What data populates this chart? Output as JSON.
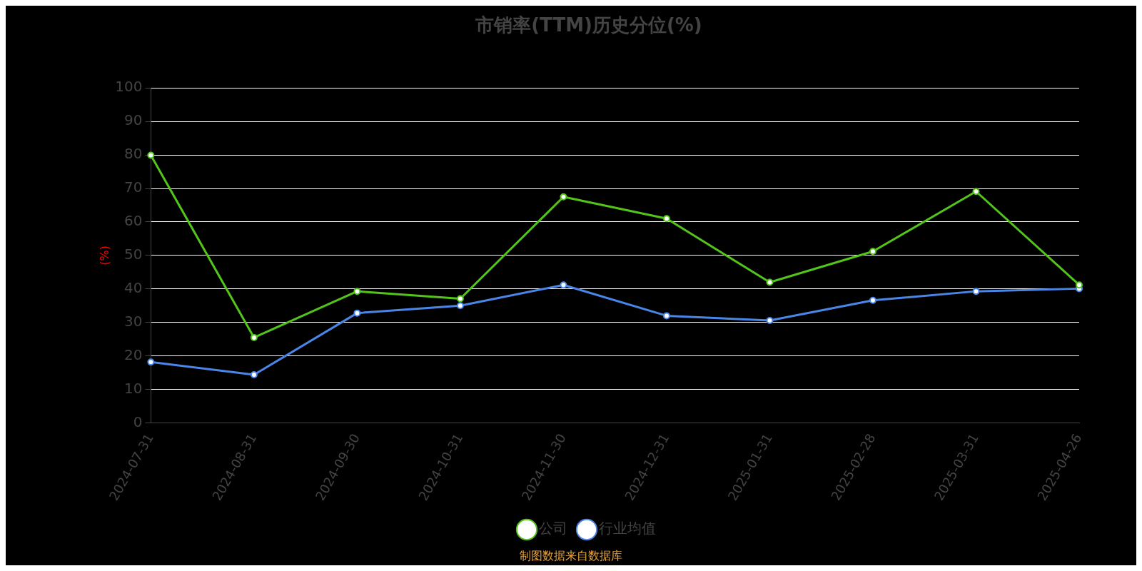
{
  "chart_data": {
    "type": "line",
    "title": "市销率(TTM)历史分位(%)",
    "ylabel": "(%)",
    "categories": [
      "2024-07-31",
      "2024-08-31",
      "2024-09-30",
      "2024-10-31",
      "2024-11-30",
      "2024-12-31",
      "2025-01-31",
      "2025-02-28",
      "2025-03-31",
      "2025-04-26"
    ],
    "series": [
      {
        "name": "公司",
        "color": "#52c41a",
        "values": [
          79.9,
          25.5,
          39.3,
          37.1,
          67.5,
          61.0,
          42.0,
          51.2,
          69.1,
          41.2
        ]
      },
      {
        "name": "行业均值",
        "color": "#4a86e8",
        "values": [
          18.2,
          14.4,
          32.8,
          35.0,
          41.2,
          32.0,
          30.6,
          36.6,
          39.3,
          40.1
        ]
      }
    ],
    "ylim": [
      0,
      100
    ],
    "yticks": [
      0,
      10,
      20,
      30,
      40,
      50,
      60,
      70,
      80,
      90,
      100
    ],
    "grid": "y",
    "legend": "bottom",
    "marker": "circle",
    "line_style": "solid",
    "annotations": [
      "制图数据来自数据库"
    ]
  }
}
